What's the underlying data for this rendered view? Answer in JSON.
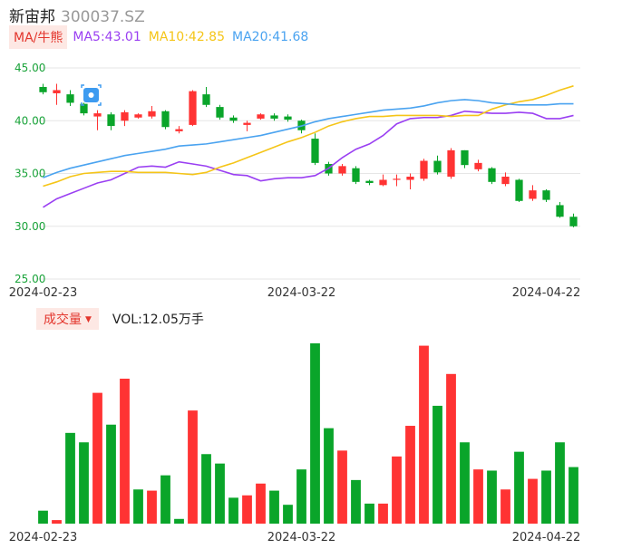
{
  "header": {
    "name": "新宙邦",
    "code": "300037.SZ"
  },
  "ma_legend": {
    "button": "MA/牛熊",
    "ma5": "MA5:43.01",
    "ma10": "MA10:42.85",
    "ma20": "MA20:41.68"
  },
  "volume_legend": {
    "button": "成交量",
    "value": "VOL:12.05万手"
  },
  "colors": {
    "up": "#ff3333",
    "down": "#0aa52a",
    "ma5": "#9a3ff2",
    "ma10": "#f5c518",
    "ma20": "#4aa3f0",
    "axis_label": "#1aa33a"
  },
  "chart_data": [
    {
      "type": "candlestick",
      "ylim": [
        25,
        45
      ],
      "yticks": [
        "45.00",
        "40.00",
        "35.00",
        "30.00",
        "25.00"
      ],
      "xtick_labels": [
        "2024-02-23",
        "2024-03-22",
        "2024-04-22"
      ],
      "xtick_index": [
        0,
        19,
        37
      ],
      "candles": [
        {
          "o": 43.2,
          "c": 42.7,
          "h": 43.5,
          "l": 42.5
        },
        {
          "o": 42.6,
          "c": 42.9,
          "h": 43.5,
          "l": 41.5
        },
        {
          "o": 42.5,
          "c": 41.7,
          "h": 42.9,
          "l": 41.4
        },
        {
          "o": 41.6,
          "c": 40.7,
          "h": 41.7,
          "l": 40.5
        },
        {
          "o": 40.4,
          "c": 40.7,
          "h": 41.0,
          "l": 39.1
        },
        {
          "o": 40.6,
          "c": 39.5,
          "h": 40.8,
          "l": 39.1
        },
        {
          "o": 40.0,
          "c": 40.8,
          "h": 41.0,
          "l": 39.5
        },
        {
          "o": 40.3,
          "c": 40.6,
          "h": 40.7,
          "l": 40.2
        },
        {
          "o": 40.4,
          "c": 40.9,
          "h": 41.4,
          "l": 40.2
        },
        {
          "o": 40.9,
          "c": 39.4,
          "h": 41.0,
          "l": 39.2
        },
        {
          "o": 39.0,
          "c": 39.2,
          "h": 39.5,
          "l": 38.8
        },
        {
          "o": 39.6,
          "c": 42.8,
          "h": 42.9,
          "l": 39.5
        },
        {
          "o": 42.5,
          "c": 41.5,
          "h": 43.2,
          "l": 41.3
        },
        {
          "o": 41.3,
          "c": 40.3,
          "h": 41.5,
          "l": 40.1
        },
        {
          "o": 40.3,
          "c": 40.0,
          "h": 40.5,
          "l": 39.8
        },
        {
          "o": 39.6,
          "c": 39.8,
          "h": 40.0,
          "l": 39.0
        },
        {
          "o": 40.2,
          "c": 40.6,
          "h": 40.7,
          "l": 40.1
        },
        {
          "o": 40.5,
          "c": 40.2,
          "h": 40.7,
          "l": 40.0
        },
        {
          "o": 40.4,
          "c": 40.1,
          "h": 40.6,
          "l": 39.9
        },
        {
          "o": 40.0,
          "c": 39.1,
          "h": 40.1,
          "l": 38.8
        },
        {
          "o": 38.3,
          "c": 36.0,
          "h": 38.8,
          "l": 35.8
        },
        {
          "o": 35.9,
          "c": 35.0,
          "h": 36.1,
          "l": 34.8
        },
        {
          "o": 35.0,
          "c": 35.7,
          "h": 35.9,
          "l": 34.8
        },
        {
          "o": 35.5,
          "c": 34.2,
          "h": 35.7,
          "l": 34.0
        },
        {
          "o": 34.3,
          "c": 34.1,
          "h": 34.4,
          "l": 33.9
        },
        {
          "o": 33.9,
          "c": 34.4,
          "h": 34.9,
          "l": 33.8
        },
        {
          "o": 34.4,
          "c": 34.5,
          "h": 34.9,
          "l": 33.8
        },
        {
          "o": 34.4,
          "c": 34.7,
          "h": 35.0,
          "l": 33.5
        },
        {
          "o": 34.5,
          "c": 36.2,
          "h": 36.4,
          "l": 34.3
        },
        {
          "o": 36.2,
          "c": 35.1,
          "h": 36.7,
          "l": 34.9
        },
        {
          "o": 34.7,
          "c": 37.2,
          "h": 37.4,
          "l": 34.5
        },
        {
          "o": 37.2,
          "c": 35.8,
          "h": 37.2,
          "l": 35.5
        },
        {
          "o": 35.4,
          "c": 36.0,
          "h": 36.3,
          "l": 35.2
        },
        {
          "o": 35.5,
          "c": 34.2,
          "h": 35.6,
          "l": 34.0
        },
        {
          "o": 34.0,
          "c": 34.7,
          "h": 35.1,
          "l": 33.8
        },
        {
          "o": 34.4,
          "c": 32.4,
          "h": 34.5,
          "l": 32.3
        },
        {
          "o": 32.6,
          "c": 33.4,
          "h": 33.9,
          "l": 32.4
        },
        {
          "o": 33.4,
          "c": 32.5,
          "h": 33.5,
          "l": 32.3
        },
        {
          "o": 32.0,
          "c": 30.9,
          "h": 32.3,
          "l": 30.8
        },
        {
          "o": 30.9,
          "c": 30.0,
          "h": 31.2,
          "l": 29.9
        }
      ],
      "series": [
        {
          "name": "MA5",
          "values": [
            31.8,
            32.6,
            33.1,
            33.6,
            34.1,
            34.4,
            35.0,
            35.6,
            35.7,
            35.6,
            36.1,
            35.9,
            35.7,
            35.3,
            34.9,
            34.8,
            34.3,
            34.5,
            34.6,
            34.6,
            34.8,
            35.5,
            36.5,
            37.3,
            37.8,
            38.6,
            39.7,
            40.2,
            40.3,
            40.3,
            40.5,
            40.9,
            40.8,
            40.7,
            40.7,
            40.8,
            40.7,
            40.2,
            40.2,
            40.5
          ]
        },
        {
          "name": "MA10",
          "values": [
            33.8,
            34.2,
            34.7,
            35.0,
            35.1,
            35.2,
            35.2,
            35.1,
            35.1,
            35.1,
            35.0,
            34.9,
            35.1,
            35.6,
            36.0,
            36.5,
            37.0,
            37.5,
            38.0,
            38.4,
            38.9,
            39.5,
            39.9,
            40.2,
            40.4,
            40.4,
            40.5,
            40.5,
            40.5,
            40.5,
            40.4,
            40.5,
            40.5,
            41.1,
            41.5,
            41.8,
            42.0,
            42.4,
            42.9,
            43.3
          ]
        },
        {
          "name": "MA20",
          "values": [
            34.6,
            35.1,
            35.5,
            35.8,
            36.1,
            36.4,
            36.7,
            36.9,
            37.1,
            37.3,
            37.6,
            37.7,
            37.8,
            38.0,
            38.2,
            38.4,
            38.6,
            38.9,
            39.2,
            39.5,
            39.9,
            40.2,
            40.4,
            40.6,
            40.8,
            41.0,
            41.1,
            41.2,
            41.4,
            41.7,
            41.9,
            42.0,
            41.9,
            41.7,
            41.6,
            41.5,
            41.5,
            41.5,
            41.6,
            41.6
          ]
        }
      ]
    },
    {
      "type": "bar",
      "title": "成交量",
      "xtick_labels": [
        "2024-02-23",
        "2024-03-22",
        "2024-04-22"
      ],
      "values": [
        1.1,
        0.3,
        7.7,
        6.9,
        11.1,
        8.4,
        12.3,
        2.9,
        2.8,
        4.1,
        0.4,
        9.6,
        5.9,
        5.1,
        2.2,
        2.4,
        3.4,
        2.8,
        1.6,
        4.6,
        15.3,
        8.1,
        6.2,
        3.7,
        1.7,
        1.7,
        5.7,
        8.3,
        15.1,
        10.0,
        12.7,
        6.9,
        4.6,
        4.5,
        2.9,
        6.1,
        3.8,
        4.5,
        6.9,
        4.8
      ],
      "up": [
        false,
        true,
        false,
        false,
        true,
        false,
        true,
        false,
        true,
        false,
        false,
        true,
        false,
        false,
        false,
        true,
        true,
        false,
        false,
        false,
        false,
        false,
        true,
        false,
        false,
        true,
        true,
        true,
        true,
        false,
        true,
        false,
        true,
        false,
        true,
        false,
        true,
        false,
        false,
        false
      ]
    }
  ]
}
